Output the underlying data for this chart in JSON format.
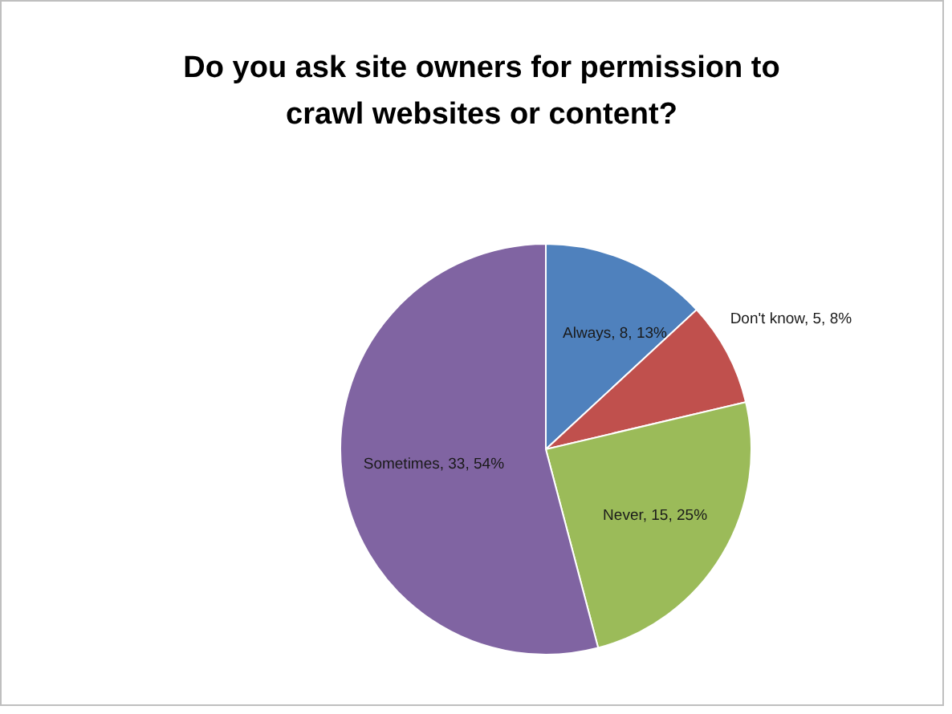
{
  "chart_data": {
    "type": "pie",
    "title": "Do you ask site owners for permission to crawl websites or content?",
    "categories": [
      "Always",
      "Don't know",
      "Never",
      "Sometimes"
    ],
    "values": [
      8,
      5,
      15,
      33
    ],
    "colors": [
      "#4f81bd",
      "#c0504d",
      "#9bbb59",
      "#8064a2"
    ],
    "value_labels": [
      ", 8, 13%",
      ", 5, 8%",
      ", 15, 25%",
      ", 33, 54%"
    ]
  }
}
